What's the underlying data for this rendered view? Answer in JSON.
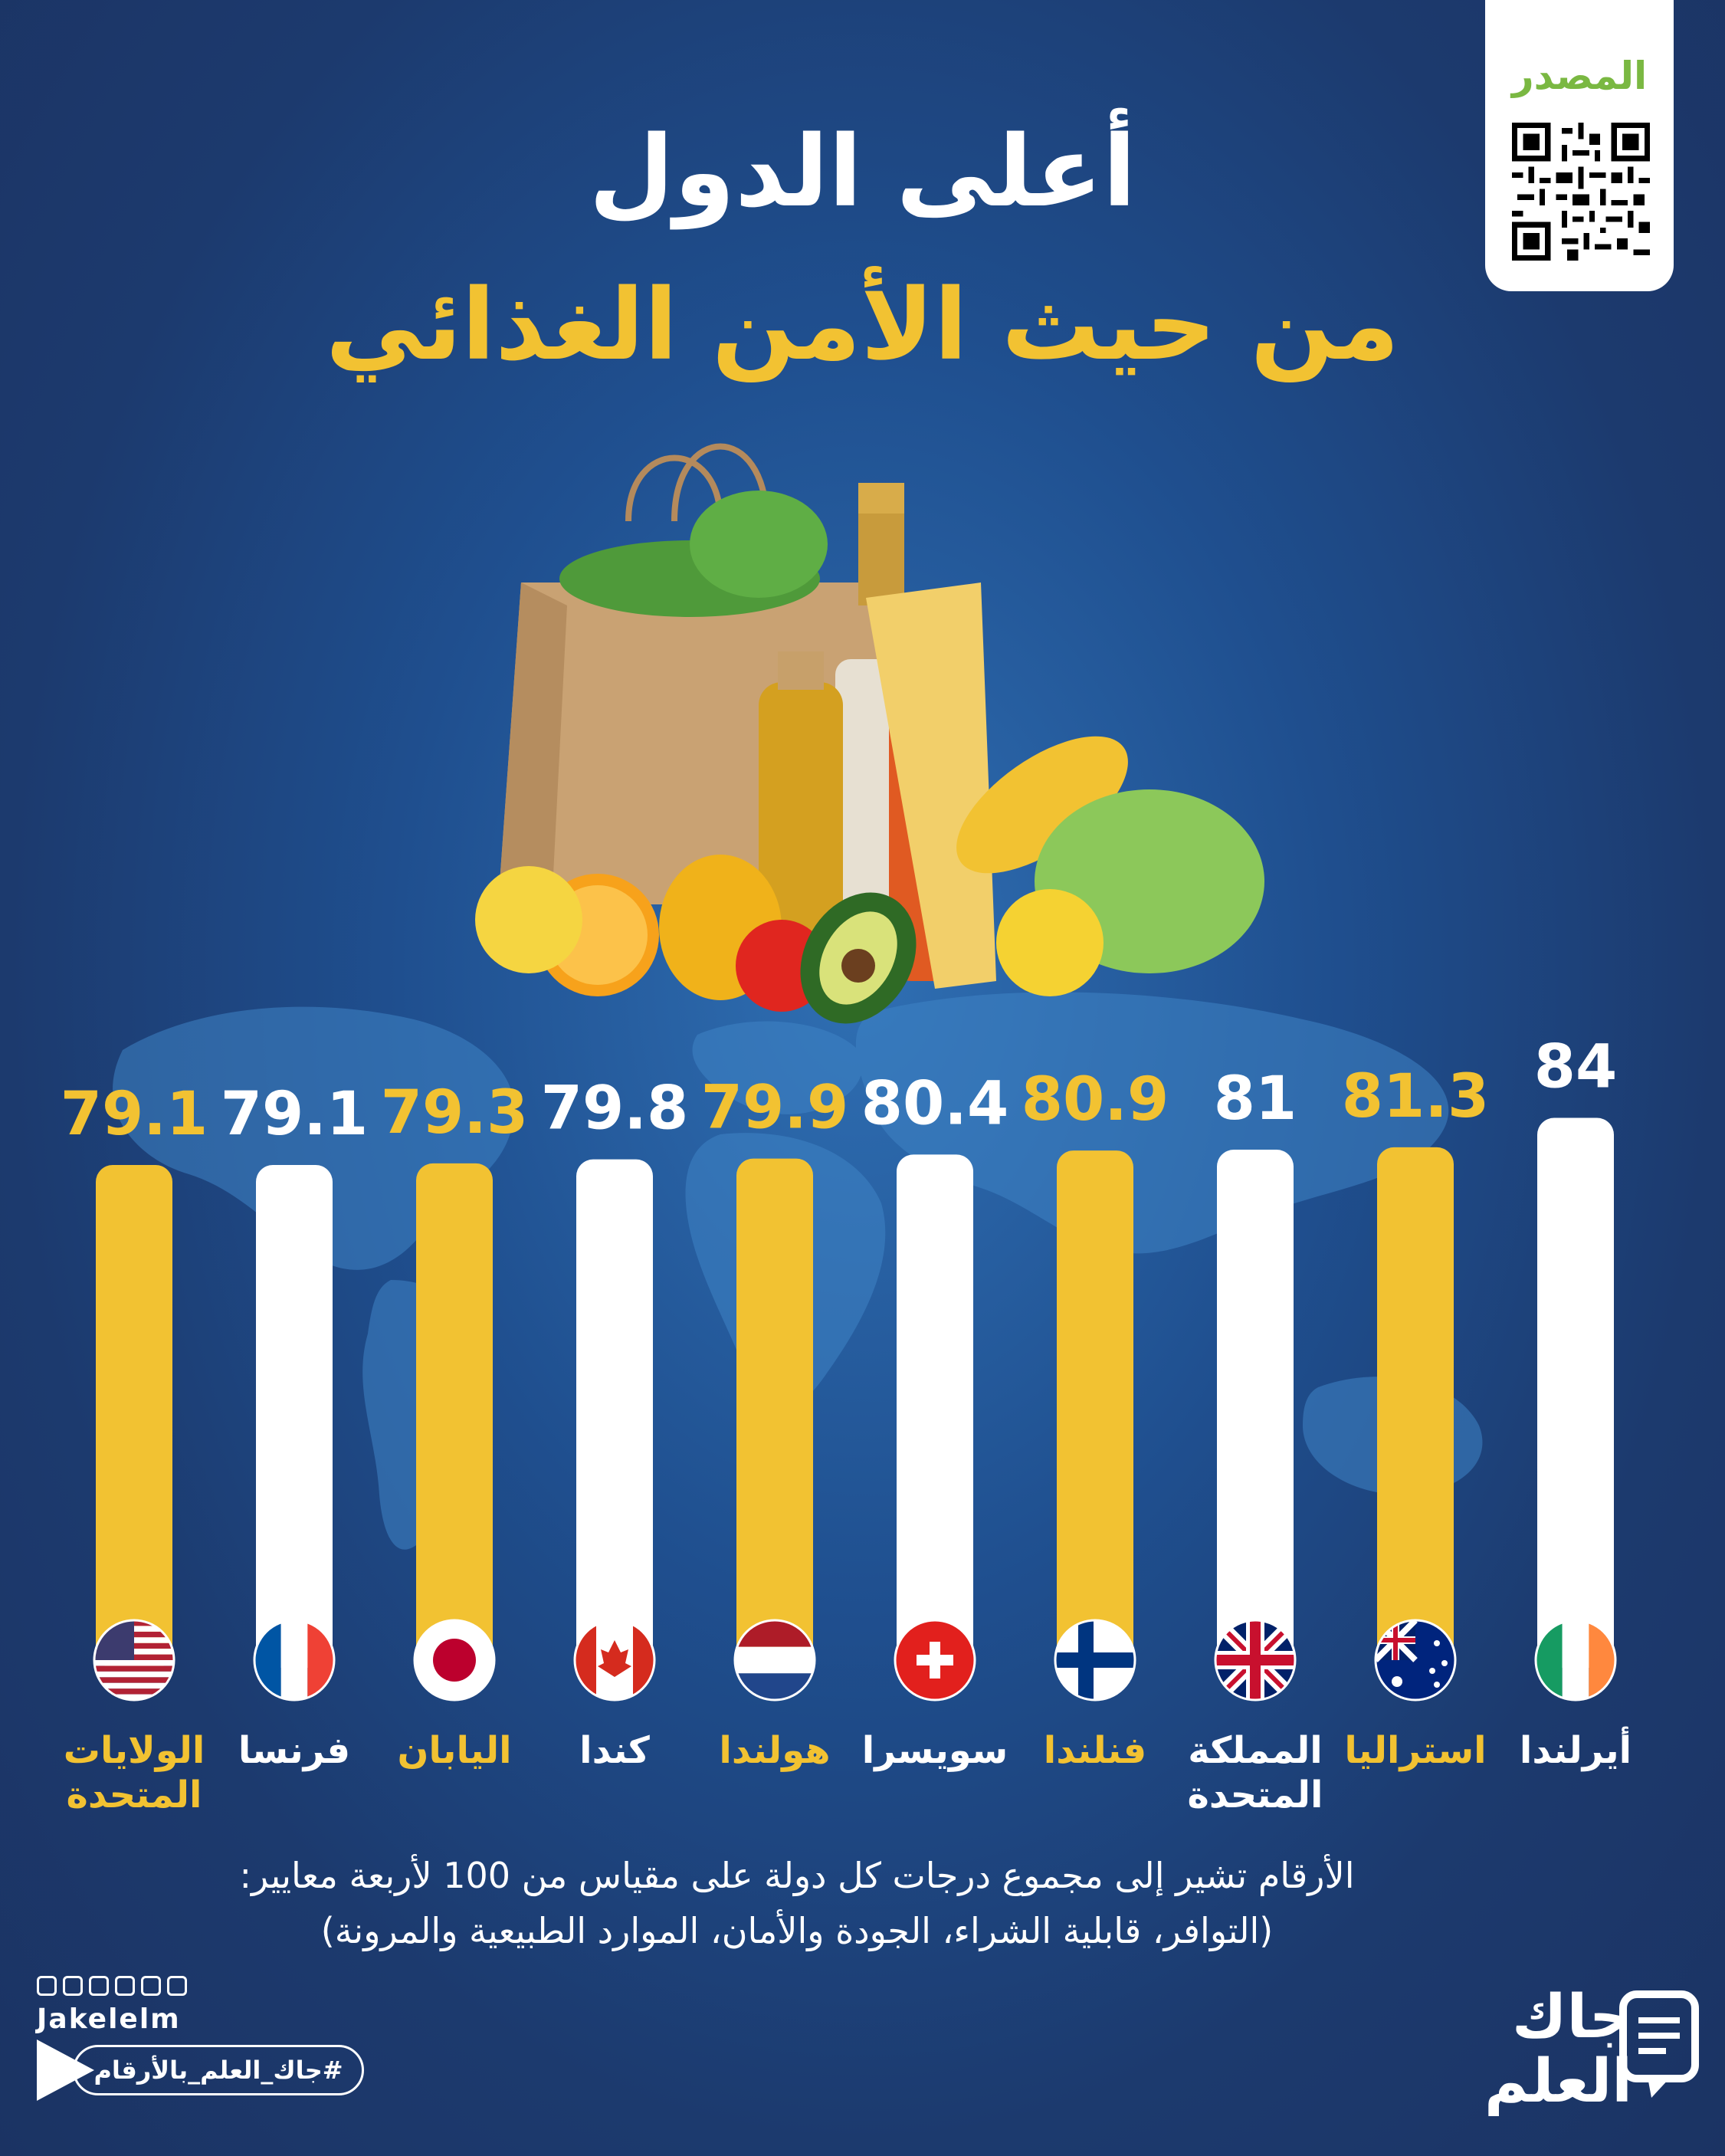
{
  "title_line1": "أعلى الدول",
  "title_line2": "من حيث الأمن الغذائي",
  "source_label": "المصدر",
  "chart_data": {
    "type": "bar",
    "categories": [
      "الولايات المتحدة",
      "فرنسا",
      "اليابان",
      "كندا",
      "هولندا",
      "سويسرا",
      "فنلندا",
      "المملكة المتحدة",
      "استراليا",
      "أيرلندا"
    ],
    "values": [
      79.1,
      79.1,
      79.3,
      79.8,
      79.9,
      80.4,
      80.9,
      81,
      81.3,
      84
    ],
    "value_labels": [
      "79.1",
      "79.1",
      "79.3",
      "79.8",
      "79.9",
      "80.4",
      "80.9",
      "81",
      "81.3",
      "84"
    ],
    "bar_colors": [
      "#f2c232",
      "#ffffff",
      "#f2c232",
      "#ffffff",
      "#f2c232",
      "#ffffff",
      "#f2c232",
      "#ffffff",
      "#f2c232",
      "#ffffff"
    ],
    "flags": [
      "us-flag-icon",
      "france-flag-icon",
      "japan-flag-icon",
      "canada-flag-icon",
      "netherlands-flag-icon",
      "switzerland-flag-icon",
      "finland-flag-icon",
      "uk-flag-icon",
      "australia-flag-icon",
      "ireland-flag-icon"
    ],
    "ylim": [
      0,
      100
    ]
  },
  "note_line1": "الأرقام تشير إلى مجموع درجات كل دولة على مقياس من 100 لأربعة معايير:",
  "note_line2": "(التوافر، قابلية الشراء، الجودة والأمان، الموارد الطبيعية والمرونة)",
  "handle": "Jakelelm",
  "hashtag": "#جاك_العلم_بالأرقام",
  "logo_line1": "جاك",
  "logo_line2": "العلم",
  "colors": {
    "accent": "#f2c232",
    "bg": "#1c3a6e",
    "source_green": "#7ab842"
  }
}
